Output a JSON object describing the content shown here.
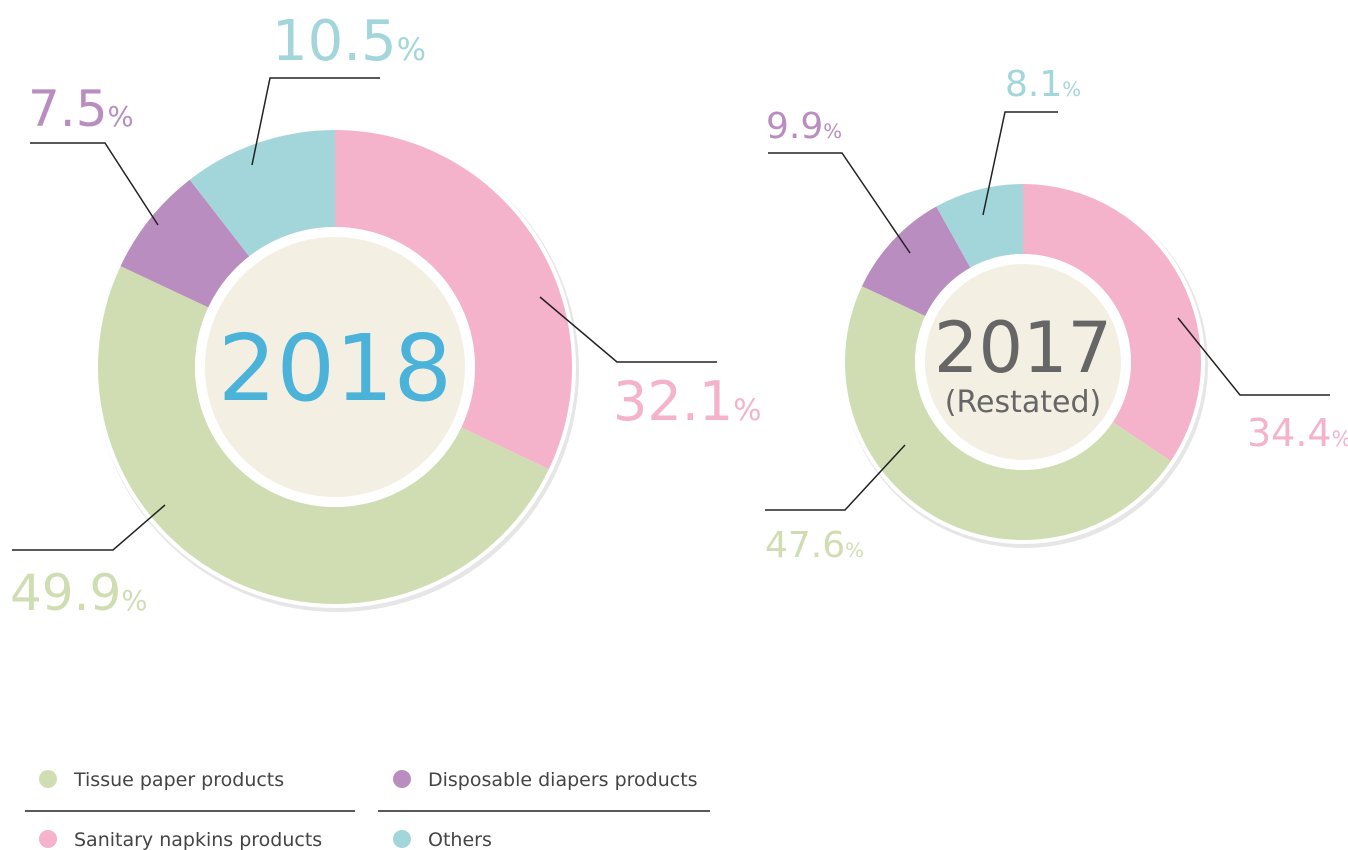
{
  "chart_data": [
    {
      "type": "pie",
      "title": "2018",
      "categories": [
        "Sanitary napkins products",
        "Tissue paper products",
        "Disposable diapers products",
        "Others"
      ],
      "values": [
        32.1,
        49.9,
        7.5,
        10.5
      ],
      "unit": "%",
      "colors": [
        "#f4b2cb",
        "#d0ddb3",
        "#b98dbf",
        "#a3d6db"
      ]
    },
    {
      "type": "pie",
      "title": "2017",
      "subtitle": "(Restated)",
      "categories": [
        "Sanitary napkins products",
        "Tissue paper products",
        "Disposable diapers products",
        "Others"
      ],
      "values": [
        34.4,
        47.6,
        9.9,
        8.1
      ],
      "unit": "%",
      "colors": [
        "#f4b2cb",
        "#d0ddb3",
        "#b98dbf",
        "#a3d6db"
      ]
    }
  ]
}
